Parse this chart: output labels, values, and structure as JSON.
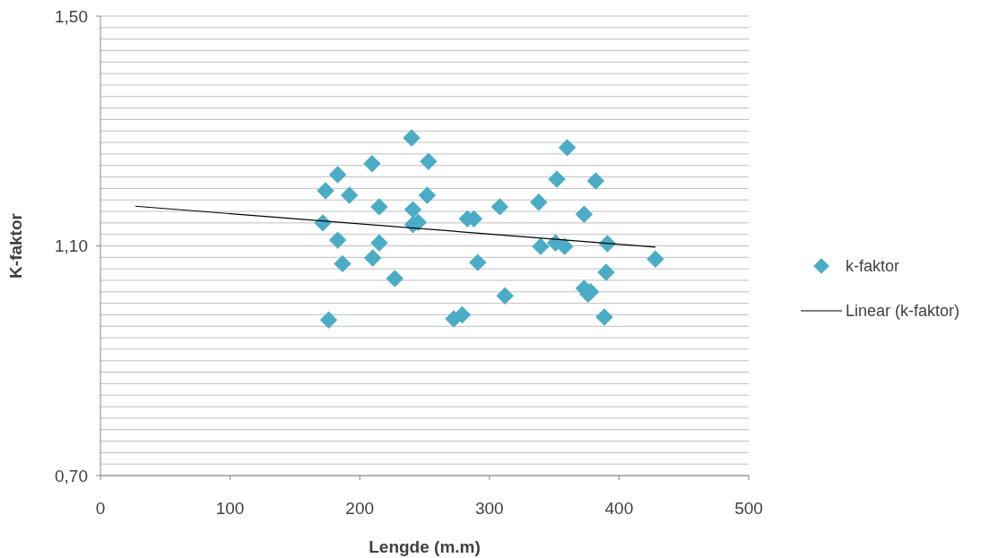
{
  "chart_data": {
    "type": "scatter",
    "xlabel": "Lengde (m.m)",
    "ylabel": "K-faktor",
    "xlim": [
      0,
      500
    ],
    "xticks": [
      0,
      100,
      200,
      300,
      400,
      500
    ],
    "ylim": [
      0.7,
      1.5
    ],
    "yticks": [
      {
        "value": 0.7,
        "label": "0,70"
      },
      {
        "value": 0.72,
        "label": null
      },
      {
        "value": 0.74,
        "label": null
      },
      {
        "value": 0.76,
        "label": null
      },
      {
        "value": 0.78,
        "label": null
      },
      {
        "value": 0.8,
        "label": null
      },
      {
        "value": 0.82,
        "label": null
      },
      {
        "value": 0.84,
        "label": null
      },
      {
        "value": 0.86,
        "label": null
      },
      {
        "value": 0.88,
        "label": null
      },
      {
        "value": 0.9,
        "label": null
      },
      {
        "value": 0.92,
        "label": null
      },
      {
        "value": 0.94,
        "label": null
      },
      {
        "value": 0.96,
        "label": null
      },
      {
        "value": 0.98,
        "label": null
      },
      {
        "value": 1.0,
        "label": null
      },
      {
        "value": 1.02,
        "label": null
      },
      {
        "value": 1.04,
        "label": null
      },
      {
        "value": 1.06,
        "label": null
      },
      {
        "value": 1.08,
        "label": null
      },
      {
        "value": 1.1,
        "label": "1,10"
      },
      {
        "value": 1.12,
        "label": null
      },
      {
        "value": 1.14,
        "label": null
      },
      {
        "value": 1.16,
        "label": null
      },
      {
        "value": 1.18,
        "label": null
      },
      {
        "value": 1.2,
        "label": null
      },
      {
        "value": 1.22,
        "label": null
      },
      {
        "value": 1.24,
        "label": null
      },
      {
        "value": 1.26,
        "label": null
      },
      {
        "value": 1.28,
        "label": null
      },
      {
        "value": 1.3,
        "label": null
      },
      {
        "value": 1.32,
        "label": null
      },
      {
        "value": 1.34,
        "label": null
      },
      {
        "value": 1.36,
        "label": null
      },
      {
        "value": 1.38,
        "label": null
      },
      {
        "value": 1.4,
        "label": null
      },
      {
        "value": 1.42,
        "label": null
      },
      {
        "value": 1.44,
        "label": null
      },
      {
        "value": 1.46,
        "label": null
      },
      {
        "value": 1.48,
        "label": null
      },
      {
        "value": 1.5,
        "label": "1,50"
      }
    ],
    "grid": "y",
    "legend": "right",
    "marker": "diamond",
    "series": [
      {
        "name": "k-faktor",
        "color": "#4bacc6",
        "x": [
          171.5,
          173.6,
          183,
          183,
          186.7,
          192,
          176,
          209.5,
          215,
          215,
          210,
          227,
          240,
          253,
          252,
          241,
          245,
          241,
          283,
          288,
          291,
          272.5,
          279,
          308,
          312,
          338,
          339.5,
          352,
          351,
          358,
          360,
          382,
          373,
          391,
          390,
          373,
          376,
          378,
          388.6,
          428
        ],
        "values": [
          1.14,
          1.196,
          1.224,
          1.11,
          1.069,
          1.188,
          0.971,
          1.243,
          1.168,
          1.105,
          1.079,
          1.043,
          1.288,
          1.247,
          1.188,
          1.163,
          1.141,
          1.137,
          1.147,
          1.147,
          1.071,
          0.973,
          0.98,
          1.168,
          1.013,
          1.176,
          1.099,
          1.216,
          1.105,
          1.099,
          1.271,
          1.213,
          1.155,
          1.104,
          1.054,
          1.026,
          1.016,
          1.02,
          0.976,
          1.077
        ]
      },
      {
        "name": "Linear (k-faktor)",
        "type": "line",
        "color": "#000000",
        "marker": "none",
        "x": [
          27,
          428
        ],
        "values": [
          1.169,
          1.098
        ]
      }
    ]
  }
}
